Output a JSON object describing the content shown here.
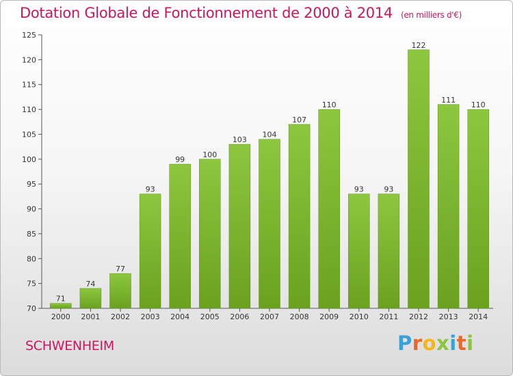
{
  "chart_data": {
    "type": "bar",
    "title": "Dotation Globale de Fonctionnement de 2000 à 2014",
    "subtitle": "(en milliers d'€)",
    "categories": [
      "2000",
      "2001",
      "2002",
      "2003",
      "2004",
      "2005",
      "2006",
      "2007",
      "2008",
      "2009",
      "2010",
      "2011",
      "2012",
      "2013",
      "2014"
    ],
    "values": [
      71,
      74,
      77,
      93,
      99,
      100,
      103,
      104,
      107,
      110,
      93,
      93,
      122,
      111,
      110
    ],
    "ylim": [
      70,
      125
    ],
    "yticks": [
      70,
      75,
      80,
      85,
      90,
      95,
      100,
      105,
      110,
      115,
      120,
      125
    ],
    "grid": false,
    "bar_color": "#8dc63f",
    "bar_dark": "#6aa21e"
  },
  "commune": "SCHWENHEIM",
  "logo": {
    "letters": [
      "P",
      "r",
      "o",
      "x",
      "i",
      "t",
      "i"
    ],
    "colors": [
      "#3aa0d8",
      "#e8682a",
      "#f3b71c",
      "#8cc63f",
      "#3aa0d8",
      "#e8682a",
      "#8cc63f"
    ]
  },
  "colors": {
    "accent": "#c8175f",
    "axis": "#555555"
  }
}
